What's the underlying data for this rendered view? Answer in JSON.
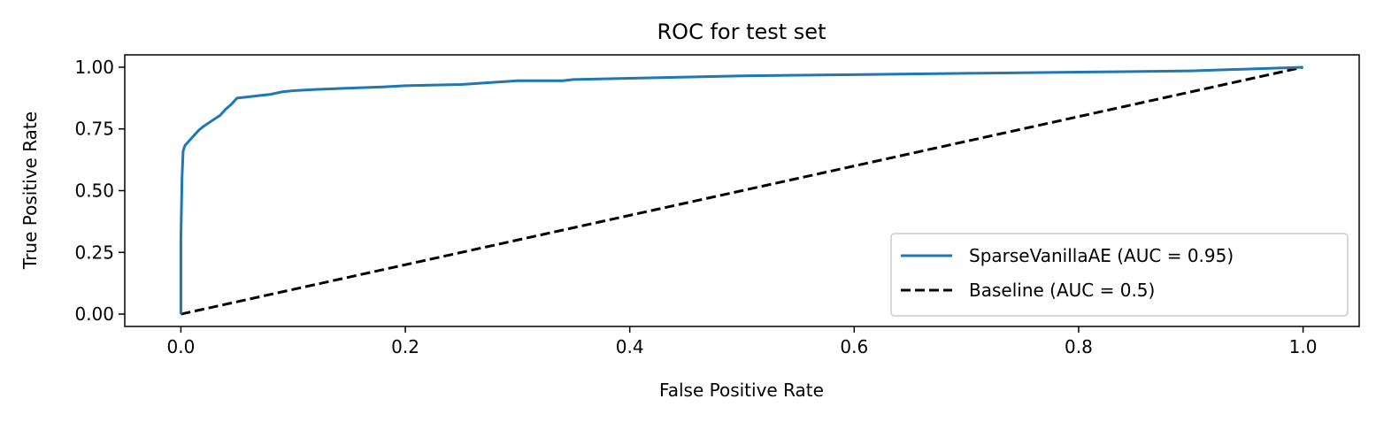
{
  "chart_data": {
    "type": "line",
    "title": "ROC for test set",
    "xlabel": "False Positive Rate",
    "ylabel": "True Positive Rate",
    "xlim": [
      -0.05,
      1.05
    ],
    "ylim": [
      -0.05,
      1.05
    ],
    "xticks": [
      0.0,
      0.2,
      0.4,
      0.6,
      0.8,
      1.0
    ],
    "xtick_labels": [
      "0.0",
      "0.2",
      "0.4",
      "0.6",
      "0.8",
      "1.0"
    ],
    "yticks": [
      0.0,
      0.25,
      0.5,
      0.75,
      1.0
    ],
    "ytick_labels": [
      "0.00",
      "0.25",
      "0.50",
      "0.75",
      "1.00"
    ],
    "grid": false,
    "legend_position": "lower-right",
    "series": [
      {
        "name": "SparseVanillaAE (AUC = 0.95)",
        "color": "#1f77b4",
        "style": "solid",
        "x": [
          0.0,
          0.0,
          0.001,
          0.002,
          0.003,
          0.004,
          0.006,
          0.008,
          0.01,
          0.013,
          0.016,
          0.02,
          0.025,
          0.03,
          0.035,
          0.04,
          0.045,
          0.05,
          0.06,
          0.07,
          0.08,
          0.09,
          0.1,
          0.12,
          0.15,
          0.18,
          0.2,
          0.25,
          0.3,
          0.34,
          0.35,
          0.4,
          0.45,
          0.5,
          0.6,
          0.7,
          0.8,
          0.9,
          1.0
        ],
        "y": [
          0.0,
          0.3,
          0.55,
          0.66,
          0.675,
          0.685,
          0.695,
          0.705,
          0.715,
          0.73,
          0.745,
          0.76,
          0.775,
          0.79,
          0.805,
          0.83,
          0.85,
          0.875,
          0.88,
          0.885,
          0.89,
          0.9,
          0.905,
          0.91,
          0.915,
          0.92,
          0.925,
          0.93,
          0.945,
          0.945,
          0.95,
          0.955,
          0.96,
          0.965,
          0.97,
          0.975,
          0.98,
          0.985,
          1.0
        ]
      },
      {
        "name": "Baseline (AUC = 0.5)",
        "color": "#000000",
        "style": "dashed",
        "x": [
          0.0,
          1.0
        ],
        "y": [
          0.0,
          1.0
        ]
      }
    ]
  }
}
